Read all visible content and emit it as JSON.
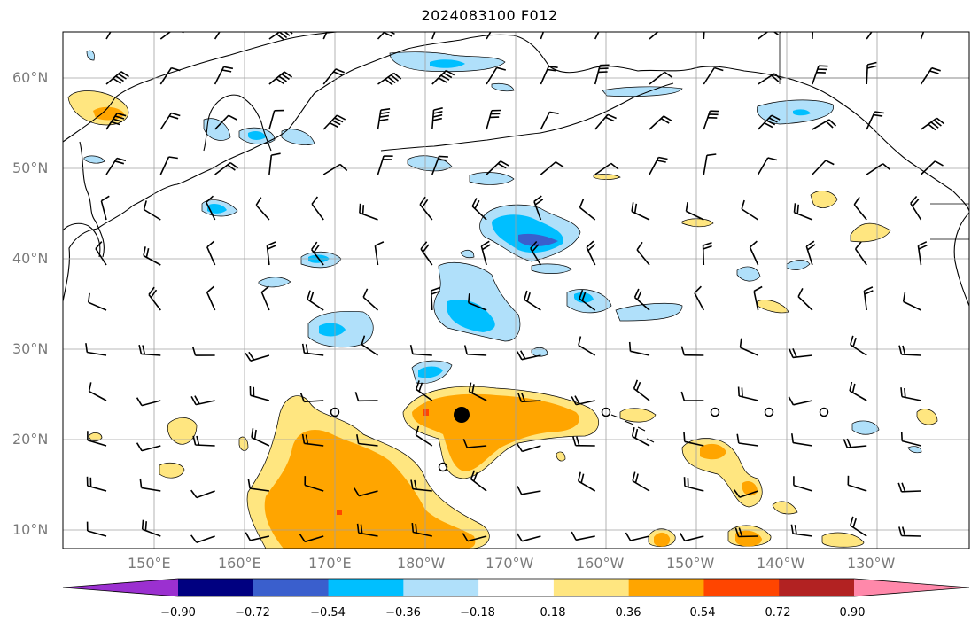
{
  "title": "2024083100 F012",
  "lat_labels": [
    "60°N",
    "50°N",
    "40°N",
    "30°N",
    "20°N",
    "10°N"
  ],
  "lon_labels": [
    "150°E",
    "160°E",
    "170°E",
    "180°W",
    "170°W",
    "160°W",
    "150°W",
    "140°W",
    "130°W"
  ],
  "colorbar": {
    "levels": [
      "−0.90",
      "−0.72",
      "−0.54",
      "−0.36",
      "−0.18",
      "0.18",
      "0.36",
      "0.54",
      "0.72",
      "0.90"
    ],
    "colors": [
      "#9b30d0",
      "#000080",
      "#3a5fcd",
      "#00bfff",
      "#b0e0fa",
      "#ffffff",
      "#ffe680",
      "#ffa500",
      "#ff4500",
      "#b22222",
      "#ff88aa"
    ]
  },
  "field_colors": {
    "pos1": "#ffe680",
    "pos2": "#ffa500",
    "pos3": "#ff4500",
    "neg1": "#b0e0fa",
    "neg2": "#00bfff",
    "neg3": "#3a5fcd"
  },
  "storm_marker": "filled-circle"
}
